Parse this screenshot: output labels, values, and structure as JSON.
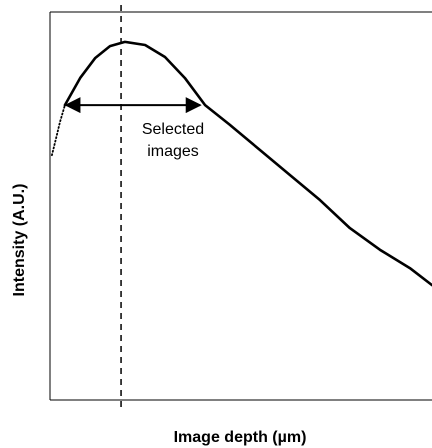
{
  "chart_data": {
    "type": "line",
    "xlabel": "Image depth (µm)",
    "ylabel": "Intensity (A.U.)",
    "annotation": [
      "Selected",
      "images"
    ],
    "xlim": [
      0,
      100
    ],
    "ylim": [
      0,
      100
    ],
    "x": [
      0.5,
      1.6,
      2.6,
      3.9,
      7.9,
      11.8,
      15.7,
      19.6,
      24.9,
      30.1,
      35.3,
      40.6,
      47.1,
      55.0,
      62.8,
      70.7,
      78.5,
      86.4,
      94.2,
      100
    ],
    "series": [
      {
        "color": "#000000",
        "style": "dotted",
        "values": [
          63.1,
          67.5,
          71.6,
          76.0,
          null,
          null,
          null,
          null,
          null,
          null,
          null,
          null,
          null,
          null,
          null,
          null,
          null,
          null,
          null,
          null
        ]
      },
      {
        "color": "#000000",
        "style": "solid",
        "values": [
          null,
          null,
          null,
          76.0,
          83.0,
          88.1,
          91.2,
          92.3,
          91.5,
          88.4,
          83.0,
          76.0,
          70.9,
          64.4,
          58.0,
          51.5,
          44.3,
          38.7,
          34.0,
          29.6
        ]
      }
    ],
    "vline": 18.6,
    "arrow": {
      "x": [
        4.2,
        39.3
      ],
      "y": 76
    }
  }
}
